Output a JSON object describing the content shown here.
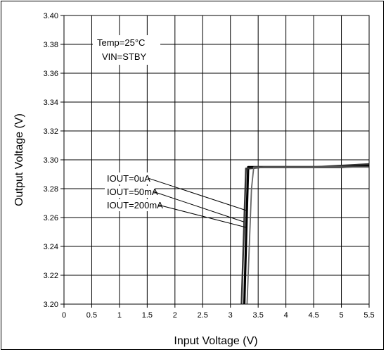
{
  "chart_data": {
    "type": "line",
    "xlabel": "Input Voltage (V)",
    "ylabel": "Output Voltage  (V)",
    "xlim": [
      0,
      5.5
    ],
    "ylim": [
      3.2,
      3.4
    ],
    "x_ticks": [
      "0",
      "0.5",
      "1",
      "1.5",
      "2",
      "2.5",
      "3",
      "3.5",
      "4",
      "4.5",
      "5",
      "5.5"
    ],
    "y_ticks": [
      "3.20",
      "3.22",
      "3.24",
      "3.26",
      "3.28",
      "3.30",
      "3.32",
      "3.34",
      "3.36",
      "3.38",
      "3.40"
    ],
    "grid": true,
    "conditions": [
      "Temp=25°C",
      "VIN=STBY"
    ],
    "series": [
      {
        "name": "IOUT=0uA",
        "color": "#000000",
        "x": [
          3.25,
          3.3,
          3.32,
          3.45,
          3.6,
          4.0,
          4.5,
          5.0,
          5.5
        ],
        "y": [
          3.2,
          3.27,
          3.295,
          3.295,
          3.295,
          3.295,
          3.295,
          3.295,
          3.296
        ]
      },
      {
        "name": "IOUT=50mA",
        "color": "#333333",
        "x": [
          3.2,
          3.25,
          3.28,
          3.35,
          3.6,
          4.0,
          4.5,
          5.0,
          5.5
        ],
        "y": [
          3.2,
          3.26,
          3.294,
          3.294,
          3.295,
          3.295,
          3.295,
          3.296,
          3.297
        ]
      },
      {
        "name": "IOUT=200mA",
        "color": "#666666",
        "x": [
          3.3,
          3.38,
          3.42,
          3.6,
          4.0,
          4.5,
          5.0,
          5.5
        ],
        "y": [
          3.2,
          3.28,
          3.295,
          3.295,
          3.295,
          3.295,
          3.295,
          3.295
        ]
      }
    ],
    "annotations": [
      {
        "text": "IOUT=0uA",
        "target": [
          3.28,
          3.265
        ]
      },
      {
        "text": "IOUT=50mA",
        "target": [
          3.24,
          3.257
        ]
      },
      {
        "text": "IOUT=200mA",
        "target": [
          3.3,
          3.253
        ]
      }
    ]
  }
}
